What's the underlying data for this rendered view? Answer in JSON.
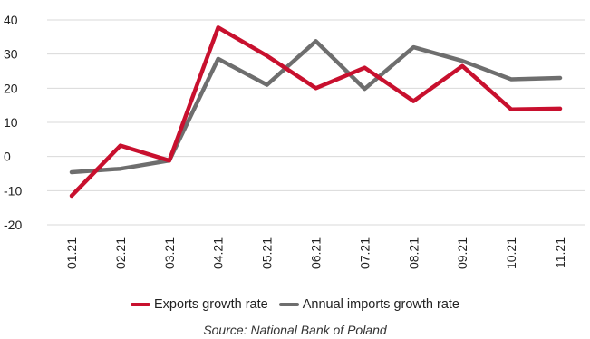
{
  "chart_data": {
    "type": "line",
    "categories": [
      "01.21",
      "02.21",
      "03.21",
      "04.21",
      "05.21",
      "06.21",
      "07.21",
      "08.21",
      "09.21",
      "10.21",
      "11.21"
    ],
    "series": [
      {
        "name": "Exports growth rate",
        "color": "#c8102e",
        "values": [
          -11.5,
          3.2,
          -1.2,
          37.8,
          29.5,
          20.0,
          26.0,
          16.2,
          26.5,
          13.8,
          14.0
        ]
      },
      {
        "name": "Annual imports growth rate",
        "color": "#6e6e6e",
        "values": [
          -4.6,
          -3.6,
          -1.2,
          28.6,
          21.0,
          33.8,
          19.8,
          32.0,
          28.0,
          22.6,
          23.0
        ]
      }
    ],
    "ylim": [
      -20,
      40
    ],
    "yticks": [
      40,
      30,
      20,
      10,
      0,
      -10,
      -20
    ],
    "ytick_labels": [
      "40",
      "30",
      "20",
      "10",
      "0",
      "-10",
      "-20"
    ],
    "grid": true,
    "legend_position": "bottom"
  },
  "source": "Source: National Bank of Poland"
}
